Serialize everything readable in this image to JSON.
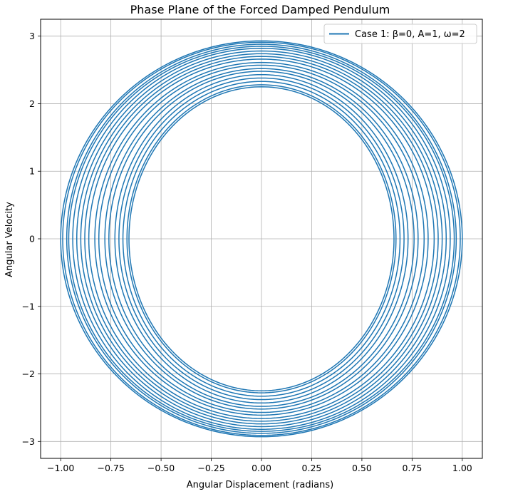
{
  "chart_data": {
    "type": "line",
    "title": "Phase Plane of the Forced Damped Pendulum",
    "xlabel": "Angular Displacement (radians)",
    "ylabel": "Angular Velocity",
    "xlim": [
      -1.1,
      1.1
    ],
    "ylim": [
      -3.25,
      3.25
    ],
    "xticks": [
      -1.0,
      -0.75,
      -0.5,
      -0.25,
      0.0,
      0.25,
      0.5,
      0.75,
      1.0
    ],
    "xtick_labels": [
      "−1.00",
      "−0.75",
      "−0.50",
      "−0.25",
      "0.00",
      "0.25",
      "0.50",
      "0.75",
      "1.00"
    ],
    "yticks": [
      -3,
      -2,
      -1,
      0,
      1,
      2,
      3
    ],
    "ytick_labels": [
      "−3",
      "−2",
      "−1",
      "0",
      "1",
      "2",
      "3"
    ],
    "grid": true,
    "legend_position": "top-right",
    "series": [
      {
        "name": "Case 1: β=0, A=1, ω=2",
        "color": "#1f77b4",
        "orbits": [
          {
            "x_amp": 1.0,
            "y_amp": 2.93
          },
          {
            "x_amp": 0.99,
            "y_amp": 2.91
          },
          {
            "x_amp": 0.97,
            "y_amp": 2.88
          },
          {
            "x_amp": 0.96,
            "y_amp": 2.85
          },
          {
            "x_amp": 0.94,
            "y_amp": 2.82
          },
          {
            "x_amp": 0.92,
            "y_amp": 2.78
          },
          {
            "x_amp": 0.9,
            "y_amp": 2.74
          },
          {
            "x_amp": 0.88,
            "y_amp": 2.7
          },
          {
            "x_amp": 0.86,
            "y_amp": 2.66
          },
          {
            "x_amp": 0.83,
            "y_amp": 2.61
          },
          {
            "x_amp": 0.81,
            "y_amp": 2.57
          },
          {
            "x_amp": 0.78,
            "y_amp": 2.52
          },
          {
            "x_amp": 0.76,
            "y_amp": 2.48
          },
          {
            "x_amp": 0.73,
            "y_amp": 2.43
          },
          {
            "x_amp": 0.71,
            "y_amp": 2.38
          },
          {
            "x_amp": 0.69,
            "y_amp": 2.33
          },
          {
            "x_amp": 0.67,
            "y_amp": 2.28
          },
          {
            "x_amp": 0.66,
            "y_amp": 2.25
          }
        ]
      }
    ]
  }
}
